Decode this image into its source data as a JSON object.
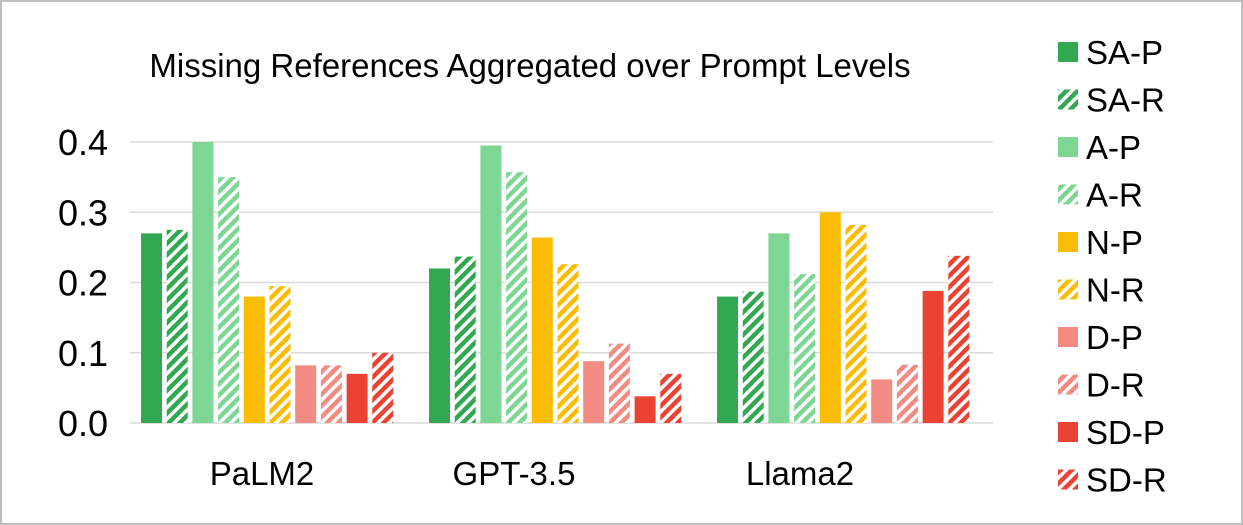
{
  "chart_data": {
    "type": "bar",
    "title": "Missing References Aggregated over Prompt Levels",
    "xlabel": "",
    "ylabel": "",
    "ylim": [
      0,
      0.4
    ],
    "yticks": [
      "0.0",
      "0.1",
      "0.2",
      "0.3",
      "0.4"
    ],
    "grid": true,
    "legend_position": "right",
    "categories": [
      "PaLM2",
      "GPT-3.5",
      "Llama2"
    ],
    "series": [
      {
        "name": "SA-P",
        "color": "#33a852",
        "pattern": "solid",
        "values": [
          0.27,
          0.22,
          0.18
        ]
      },
      {
        "name": "SA-R",
        "color": "#33a852",
        "pattern": "striped",
        "values": [
          0.275,
          0.237,
          0.187
        ]
      },
      {
        "name": "A-P",
        "color": "#7dd694",
        "pattern": "solid",
        "values": [
          0.4,
          0.395,
          0.27
        ]
      },
      {
        "name": "A-R",
        "color": "#7dd694",
        "pattern": "striped",
        "values": [
          0.35,
          0.357,
          0.212
        ]
      },
      {
        "name": "N-P",
        "color": "#fbbc04",
        "pattern": "solid",
        "values": [
          0.18,
          0.264,
          0.3
        ]
      },
      {
        "name": "N-R",
        "color": "#fbbc04",
        "pattern": "striped",
        "values": [
          0.195,
          0.226,
          0.282
        ]
      },
      {
        "name": "D-P",
        "color": "#f28b82",
        "pattern": "solid",
        "values": [
          0.082,
          0.088,
          0.062
        ]
      },
      {
        "name": "D-R",
        "color": "#f28b82",
        "pattern": "striped",
        "values": [
          0.082,
          0.113,
          0.083
        ]
      },
      {
        "name": "SD-P",
        "color": "#ea4335",
        "pattern": "solid",
        "values": [
          0.07,
          0.038,
          0.188
        ]
      },
      {
        "name": "SD-R",
        "color": "#ea4335",
        "pattern": "striped",
        "values": [
          0.1,
          0.07,
          0.238
        ]
      }
    ]
  }
}
